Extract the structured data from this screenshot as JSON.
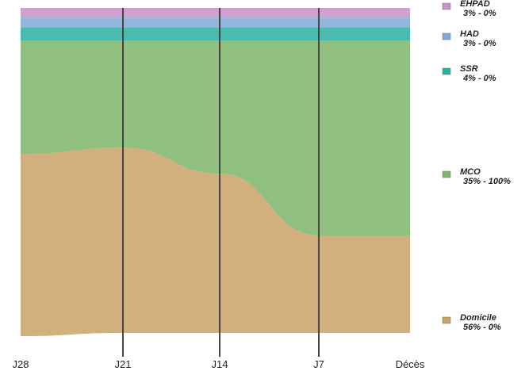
{
  "chart_data": {
    "type": "alluvial",
    "title": "",
    "xlabel": "",
    "ylabel": "",
    "stages": [
      "J28",
      "J21",
      "J14",
      "J7",
      "Décès"
    ],
    "categories": [
      {
        "name": "EHPAD",
        "pct_label": "3% - 0%",
        "color": "#c890c8"
      },
      {
        "name": "HAD",
        "pct_label": "3% - 0%",
        "color": "#7ea8d8"
      },
      {
        "name": "SSR",
        "pct_label": "4% - 0%",
        "color": "#2ab0a0"
      },
      {
        "name": "MCO",
        "pct_label": "35% - 100%",
        "color": "#7db56a"
      },
      {
        "name": "Domicile",
        "pct_label": "56% - 0%",
        "color": "#c9a266"
      }
    ],
    "shares_percent": {
      "J28": {
        "EHPAD": 3,
        "HAD": 3,
        "SSR": 4,
        "MCO": 35,
        "Domicile": 56
      },
      "J21": {
        "EHPAD": 3,
        "HAD": 3,
        "SSR": 4,
        "MCO": 33,
        "Domicile": 57
      },
      "J14": {
        "EHPAD": 3,
        "HAD": 3,
        "SSR": 4,
        "MCO": 41,
        "Domicile": 49
      },
      "J7": {
        "EHPAD": 3,
        "HAD": 3,
        "SSR": 4,
        "MCO": 60,
        "Domicile": 30
      },
      "Décès": {
        "EHPAD": 0,
        "HAD": 0,
        "SSR": 0,
        "MCO": 100,
        "Domicile": 0
      }
    },
    "legend_position": "right",
    "grid": false
  }
}
